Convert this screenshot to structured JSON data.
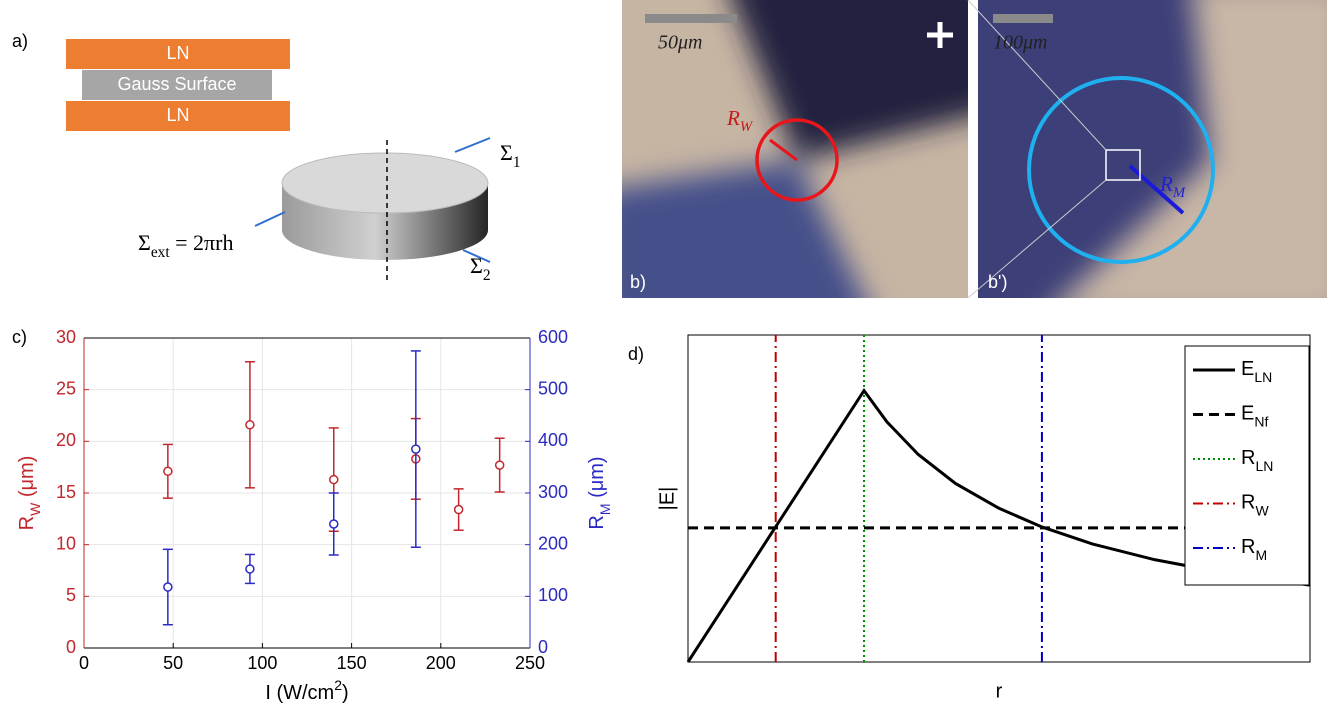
{
  "panel_labels": {
    "a": "a)",
    "b": "b)",
    "b_prime": "b')",
    "c": "c)",
    "d": "d)"
  },
  "diagram": {
    "top_layer": "LN",
    "middle_layer": "Gauss Surface",
    "bottom_layer": "LN",
    "sigma_top": {
      "symbol": "Σ",
      "sub": "1"
    },
    "sigma_ext": {
      "symbol": "Σ",
      "sub": "ext",
      "rest": " = 2πrh"
    },
    "sigma_bottom": {
      "symbol": "Σ",
      "sub": "2"
    }
  },
  "micrographs": {
    "scale_bar_left": "50μm",
    "scale_bar_right": "100μm",
    "radius_left": {
      "symbol": "R",
      "sub": "W"
    },
    "radius_right": {
      "symbol": "R",
      "sub": "M"
    }
  },
  "chart_data": [
    {
      "type": "errorbar",
      "xlabel": {
        "text": "I (W/cm",
        "sup": "2",
        "rest": ")"
      },
      "ylabel": {
        "symbol": "R",
        "sub": "W",
        "rest": " (μm)"
      },
      "y2label": {
        "symbol": "R",
        "sub": "M",
        "rest": " (μm)"
      },
      "xlim": [
        0,
        250
      ],
      "xticks": [
        0,
        50,
        100,
        150,
        200,
        250
      ],
      "ylim": [
        0,
        30
      ],
      "yticks": [
        0,
        5,
        10,
        15,
        20,
        25,
        30
      ],
      "y2lim": [
        0,
        600
      ],
      "y2ticks": [
        0,
        100,
        200,
        300,
        400,
        500,
        600
      ],
      "grid": true,
      "series": [
        {
          "color": "#c1272d",
          "x": [
            47,
            93,
            140,
            186,
            210,
            233
          ],
          "values": [
            17.1,
            21.6,
            16.3,
            18.3,
            13.4,
            17.7
          ],
          "errors": [
            2.6,
            6.1,
            5,
            3.9,
            2,
            2.6
          ]
        },
        {
          "color": "#2b2bc4",
          "axis": "y2",
          "x": [
            47,
            93,
            140,
            186
          ],
          "values": [
            118,
            153,
            240,
            385
          ],
          "errors": [
            73,
            28,
            60,
            190
          ]
        }
      ]
    },
    {
      "type": "line",
      "xlabel": "r",
      "ylabel": "|E|",
      "xlim": [
        0,
        1
      ],
      "ylim": [
        0,
        1
      ],
      "legend": "upper right",
      "series": [
        {
          "name": {
            "symbol": "E",
            "sub": "LN"
          },
          "color": "#000000",
          "style": "solid",
          "x": [
            0,
            0.283,
            0.32,
            0.37,
            0.43,
            0.5,
            0.569,
            0.65,
            0.75,
            0.87,
            1.0
          ],
          "values": [
            0,
            0.83,
            0.734,
            0.635,
            0.546,
            0.47,
            0.413,
            0.361,
            0.313,
            0.27,
            0.235
          ]
        },
        {
          "name": {
            "symbol": "E",
            "sub": "Nf"
          },
          "color": "#000000",
          "style": "dashed",
          "x": [
            0,
            1
          ],
          "values": [
            0.41,
            0.41
          ]
        },
        {
          "name": {
            "symbol": "R",
            "sub": "LN"
          },
          "color": "#008a00",
          "style": "dotted",
          "x": [
            0.283,
            0.283
          ],
          "values": [
            0,
            1
          ]
        },
        {
          "name": {
            "symbol": "R",
            "sub": "W"
          },
          "color": "#c00000",
          "style": "dashdot",
          "x": [
            0.141,
            0.141
          ],
          "values": [
            0,
            1
          ]
        },
        {
          "name": {
            "symbol": "R",
            "sub": "M"
          },
          "color": "#0000c0",
          "style": "dashdot",
          "x": [
            0.569,
            0.569
          ],
          "values": [
            0,
            1
          ]
        }
      ]
    }
  ]
}
